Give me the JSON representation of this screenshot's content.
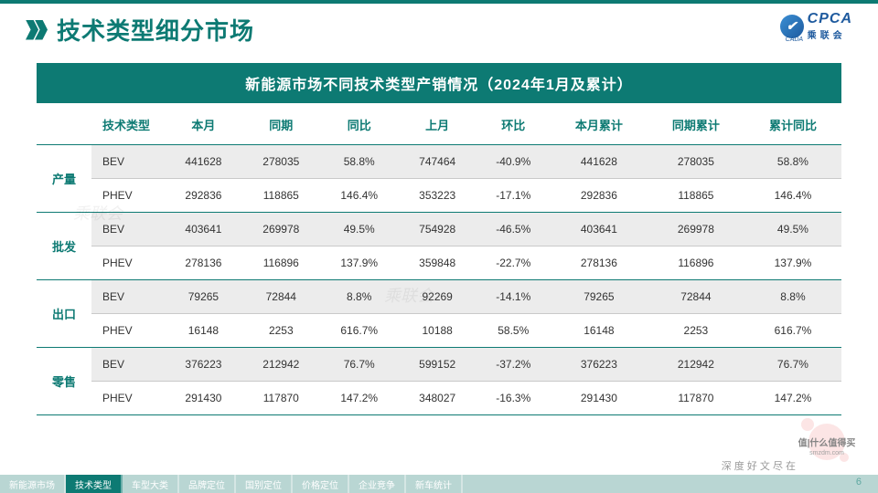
{
  "header": {
    "title": "技术类型细分市场",
    "logo_main": "CPCA",
    "logo_sub": "乘联会",
    "logo_tiny": "CADA"
  },
  "banner": "新能源市场不同技术类型产销情况（2024年1月及累计）",
  "columns": [
    "技术类型",
    "本月",
    "同期",
    "同比",
    "上月",
    "环比",
    "本月累计",
    "同期累计",
    "累计同比"
  ],
  "groups": [
    {
      "label": "产量",
      "rows": [
        {
          "tech": "BEV",
          "cells": [
            "441628",
            "278035",
            "58.8%",
            "747464",
            "-40.9%",
            "441628",
            "278035",
            "58.8%"
          ]
        },
        {
          "tech": "PHEV",
          "cells": [
            "292836",
            "118865",
            "146.4%",
            "353223",
            "-17.1%",
            "292836",
            "118865",
            "146.4%"
          ]
        }
      ]
    },
    {
      "label": "批发",
      "rows": [
        {
          "tech": "BEV",
          "cells": [
            "403641",
            "269978",
            "49.5%",
            "754928",
            "-46.5%",
            "403641",
            "269978",
            "49.5%"
          ]
        },
        {
          "tech": "PHEV",
          "cells": [
            "278136",
            "116896",
            "137.9%",
            "359848",
            "-22.7%",
            "278136",
            "116896",
            "137.9%"
          ]
        }
      ]
    },
    {
      "label": "出口",
      "rows": [
        {
          "tech": "BEV",
          "cells": [
            "79265",
            "72844",
            "8.8%",
            "92269",
            "-14.1%",
            "79265",
            "72844",
            "8.8%"
          ]
        },
        {
          "tech": "PHEV",
          "cells": [
            "16148",
            "2253",
            "616.7%",
            "10188",
            "58.5%",
            "16148",
            "2253",
            "616.7%"
          ]
        }
      ]
    },
    {
      "label": "零售",
      "rows": [
        {
          "tech": "BEV",
          "cells": [
            "376223",
            "212942",
            "76.7%",
            "599152",
            "-37.2%",
            "376223",
            "212942",
            "76.7%"
          ]
        },
        {
          "tech": "PHEV",
          "cells": [
            "291430",
            "117870",
            "147.2%",
            "348027",
            "-16.3%",
            "291430",
            "117870",
            "147.2%"
          ]
        }
      ]
    }
  ],
  "tabs": [
    "新能源市场",
    "技术类型",
    "车型大类",
    "品牌定位",
    "国别定位",
    "价格定位",
    "企业竞争",
    "新车统计"
  ],
  "active_tab_index": 1,
  "page_number": "6",
  "footer_brand": "深 度 好 文  尽 在",
  "watermark": {
    "main": "值|什么值得买",
    "sub": "smzdm.com"
  },
  "colors": {
    "teal": "#0d7a73",
    "row_alt": "#ececec",
    "border": "#c9c9c9"
  }
}
